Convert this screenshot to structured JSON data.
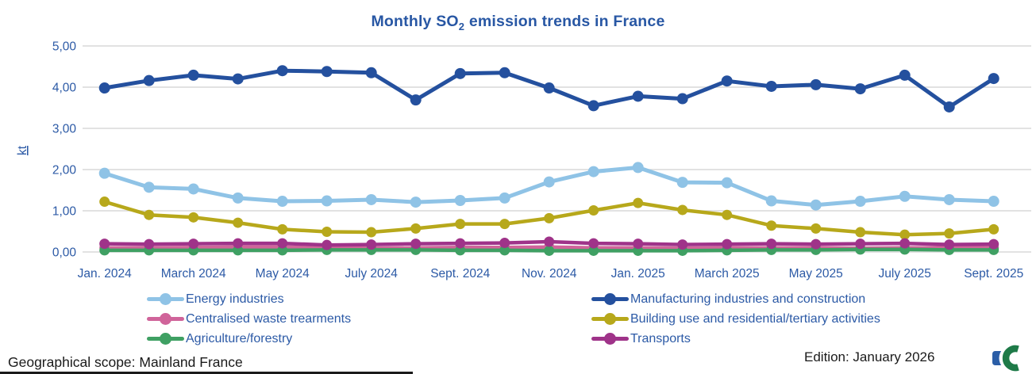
{
  "title": {
    "prefix": "Monthly SO",
    "sub": "2",
    "suffix": " emission trends in France"
  },
  "y_axis": {
    "label": "kt",
    "ticks": [
      {
        "label": "5,00",
        "value": 5
      },
      {
        "label": "4,00",
        "value": 4
      },
      {
        "label": "3,00",
        "value": 3
      },
      {
        "label": "2,00",
        "value": 2
      },
      {
        "label": "1,00",
        "value": 1
      },
      {
        "label": "0,00",
        "value": 0
      }
    ]
  },
  "footer": {
    "scope": "Geographical scope: Mainland France",
    "edition": "Edition: January 2026"
  },
  "colors": {
    "title_text": "#2857a4",
    "axis_text": "#2c5aa6",
    "legend_text": "#2c5aa6",
    "gridline": "#d9d9d9",
    "footer_text": "#1a1a1a",
    "logo_green": "#1e7a48",
    "logo_blue": "#2b5ea7"
  },
  "chart_data": {
    "type": "line",
    "title": "Monthly SO2 emission trends in France",
    "xlabel": "",
    "ylabel": "kt",
    "ylim": [
      0,
      5
    ],
    "grid": true,
    "legend_position": "bottom",
    "x": [
      "Jan. 2024",
      "Feb. 2024",
      "March 2024",
      "April 2024",
      "May 2024",
      "June 2024",
      "July 2024",
      "Aug. 2024",
      "Sept. 2024",
      "Oct. 2024",
      "Nov. 2024",
      "Dec. 2024",
      "Jan. 2025",
      "Feb. 2025",
      "March 2025",
      "April 2025",
      "May 2025",
      "June 2025",
      "July 2025",
      "Aug. 2025",
      "Sept. 2025"
    ],
    "x_tick_every": 2,
    "x_tick_labels": [
      "Jan. 2024",
      "March 2024",
      "May 2024",
      "July 2024",
      "Sept. 2024",
      "Nov. 2024",
      "Jan. 2025",
      "March 2025",
      "May 2025",
      "July 2025",
      "Sept. 2025"
    ],
    "series": [
      {
        "name": "Energy industries",
        "color": "#8fc3e6",
        "values": [
          1.91,
          1.57,
          1.53,
          1.31,
          1.23,
          1.24,
          1.27,
          1.21,
          1.25,
          1.31,
          1.7,
          1.95,
          2.05,
          1.69,
          1.68,
          1.24,
          1.14,
          1.23,
          1.35,
          1.27,
          1.23
        ]
      },
      {
        "name": "Manufacturing industries and construction",
        "color": "#24509e",
        "values": [
          3.98,
          4.16,
          4.29,
          4.2,
          4.4,
          4.38,
          4.35,
          3.69,
          4.33,
          4.35,
          3.98,
          3.55,
          3.78,
          3.72,
          4.15,
          4.02,
          4.06,
          3.96,
          4.29,
          3.52,
          4.21
        ]
      },
      {
        "name": "Centralised waste trearments",
        "color": "#d0649a",
        "values": [
          0.1,
          0.1,
          0.11,
          0.12,
          0.12,
          0.1,
          0.09,
          0.1,
          0.11,
          0.11,
          0.12,
          0.1,
          0.1,
          0.09,
          0.1,
          0.1,
          0.1,
          0.09,
          0.1,
          0.1,
          0.1
        ]
      },
      {
        "name": "Building use and residential/tertiary activities",
        "color": "#b7a81b",
        "values": [
          1.22,
          0.9,
          0.84,
          0.71,
          0.55,
          0.49,
          0.48,
          0.57,
          0.68,
          0.68,
          0.82,
          1.01,
          1.19,
          1.02,
          0.9,
          0.64,
          0.57,
          0.48,
          0.42,
          0.45,
          0.55
        ]
      },
      {
        "name": "Agriculture/forestry",
        "color": "#3fa063",
        "values": [
          0.04,
          0.04,
          0.04,
          0.04,
          0.04,
          0.05,
          0.05,
          0.05,
          0.04,
          0.04,
          0.03,
          0.03,
          0.03,
          0.03,
          0.04,
          0.05,
          0.05,
          0.06,
          0.06,
          0.05,
          0.05
        ]
      },
      {
        "name": "Transports",
        "color": "#9f3389",
        "values": [
          0.2,
          0.19,
          0.2,
          0.21,
          0.21,
          0.17,
          0.18,
          0.2,
          0.21,
          0.22,
          0.25,
          0.21,
          0.2,
          0.18,
          0.19,
          0.2,
          0.19,
          0.2,
          0.21,
          0.18,
          0.19
        ]
      }
    ],
    "legend_columns": [
      [
        0,
        2,
        4
      ],
      [
        1,
        3,
        5
      ]
    ]
  }
}
